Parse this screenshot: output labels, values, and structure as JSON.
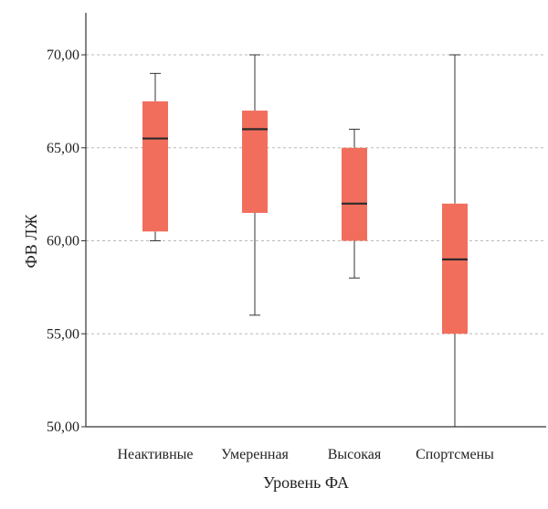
{
  "chart_data": {
    "type": "box",
    "title": "",
    "xlabel": "Уровень ФА",
    "ylabel": "ФВ ЛЖ",
    "ylim": [
      50,
      70
    ],
    "yticks": [
      70,
      65,
      60,
      55,
      50
    ],
    "ytick_labels": [
      "70,00",
      "65,00",
      "60,00",
      "55,00",
      "50,00"
    ],
    "grid": "horizontal dashed",
    "categories": [
      "Неактивные",
      "Умеренная",
      "Высокая",
      "Спортсмены"
    ],
    "boxes": [
      {
        "category": "Неактивные",
        "min": 60.0,
        "q1": 60.5,
        "median": 65.5,
        "q3": 67.5,
        "max": 69.0
      },
      {
        "category": "Умеренная",
        "min": 56.0,
        "q1": 61.5,
        "median": 66.0,
        "q3": 67.0,
        "max": 70.0
      },
      {
        "category": "Высокая",
        "min": 58.0,
        "q1": 60.0,
        "median": 62.0,
        "q3": 65.0,
        "max": 66.0
      },
      {
        "category": "Спортсмены",
        "min": 50.0,
        "q1": 55.0,
        "median": 59.0,
        "q3": 62.0,
        "max": 70.0
      }
    ],
    "colors": {
      "box_fill": "#f26e5c",
      "median": "#2b2b2b",
      "whisker": "#333333",
      "grid": "#b9b9b9",
      "axis": "#333333"
    }
  }
}
